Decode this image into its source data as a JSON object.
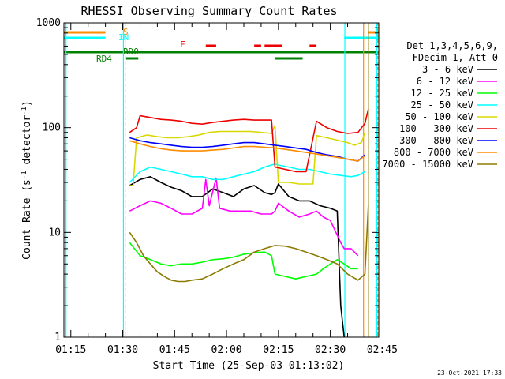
{
  "chart_data": {
    "type": "line",
    "title": "RHESSI Observing Summary Count Rates",
    "xlabel": "Start Time (25-Sep-03 01:13:02)",
    "ylabel_main": "Count Rate (s",
    "ylabel_sup": "-1",
    "ylabel_rest": " detector",
    "ylabel_sup2": "-1",
    "ylabel_end": ")",
    "xlim": [
      73,
      164
    ],
    "ylim": [
      1,
      1000
    ],
    "yscale": "log",
    "xticks": [
      {
        "t": 75,
        "label": "01:15"
      },
      {
        "t": 90,
        "label": "01:30"
      },
      {
        "t": 105,
        "label": "01:45"
      },
      {
        "t": 120,
        "label": "02:00"
      },
      {
        "t": 135,
        "label": "02:15"
      },
      {
        "t": 150,
        "label": "02:30"
      },
      {
        "t": 165,
        "label": "02:45"
      }
    ],
    "yticks": [
      {
        "v": 1,
        "label": "1"
      },
      {
        "v": 10,
        "label": "10"
      },
      {
        "v": 100,
        "label": "100"
      },
      {
        "v": 1000,
        "label": "1000"
      }
    ],
    "legend": {
      "header": [
        "Det 1,3,4,5,6,9,",
        "FDecim 1, Att 0"
      ],
      "entries": [
        {
          "label": "3 - 6 keV",
          "color": "#000000"
        },
        {
          "label": "6 - 12 keV",
          "color": "#ff00ff"
        },
        {
          "label": "12 - 25 keV",
          "color": "#00ff00"
        },
        {
          "label": "25 - 50 keV",
          "color": "#00ffff"
        },
        {
          "label": "50 - 100 keV",
          "color": "#d8d800"
        },
        {
          "label": "100 - 300 keV",
          "color": "#ee0000"
        },
        {
          "label": "300 - 800 keV",
          "color": "#0000ff"
        },
        {
          "label": "800 - 7000 keV",
          "color": "#ff8c00"
        },
        {
          "label": "7000 - 15000 keV",
          "color": "#8b7a00"
        }
      ]
    },
    "flags": [
      {
        "label": "S",
        "color": "#ff8c00",
        "segments": [
          [
            73,
            85
          ],
          [
            161,
            164
          ]
        ]
      },
      {
        "label": "IN",
        "color": "#00ffff",
        "segments": [
          [
            73,
            85
          ],
          [
            154,
            164
          ]
        ]
      },
      {
        "label": "F",
        "color": "#ee0000",
        "segments": [
          [
            114,
            117
          ],
          [
            128,
            130
          ],
          [
            131,
            136
          ],
          [
            144,
            146
          ]
        ]
      },
      {
        "label": "RD0",
        "color": "#008000",
        "segments": [
          [
            73,
            164
          ]
        ]
      },
      {
        "label": "RD4",
        "color": "#008000",
        "segments": [
          [
            91,
            94.5
          ],
          [
            134,
            142
          ]
        ]
      }
    ],
    "vlines": [
      {
        "t": 73.6,
        "color": "#00ffff",
        "style": "solid"
      },
      {
        "t": 90.7,
        "color": "#ff8c00",
        "style": "dashed"
      },
      {
        "t": 90.2,
        "color": "#00ffff",
        "style": "solid"
      },
      {
        "t": 154.2,
        "color": "#00ffff",
        "style": "solid"
      },
      {
        "t": 159.6,
        "color": "#ff8c00",
        "style": "solid"
      },
      {
        "t": 161.0,
        "color": "#8b7a00",
        "style": "solid"
      },
      {
        "t": 163.4,
        "color": "#00ffff",
        "style": "solid"
      },
      {
        "t": 163.7,
        "color": "#ff8c00",
        "style": "dashed"
      }
    ],
    "series": [
      {
        "name": "3 - 6 keV",
        "color": "#000000",
        "points": [
          [
            92,
            28
          ],
          [
            95,
            32
          ],
          [
            98,
            34
          ],
          [
            101,
            30
          ],
          [
            104,
            27
          ],
          [
            107,
            25
          ],
          [
            110,
            22
          ],
          [
            113,
            22
          ],
          [
            116,
            26
          ],
          [
            119,
            24
          ],
          [
            122,
            22
          ],
          [
            125,
            26
          ],
          [
            128,
            28
          ],
          [
            131,
            24
          ],
          [
            133,
            23
          ],
          [
            134,
            24
          ],
          [
            135,
            29
          ],
          [
            138,
            22
          ],
          [
            141,
            20
          ],
          [
            144,
            20
          ],
          [
            147,
            18
          ],
          [
            150,
            17
          ],
          [
            152,
            16
          ],
          [
            153,
            2
          ],
          [
            154,
            1
          ]
        ]
      },
      {
        "name": "6 - 12 keV",
        "color": "#ff00ff",
        "points": [
          [
            92,
            16
          ],
          [
            95,
            18
          ],
          [
            98,
            20
          ],
          [
            101,
            19
          ],
          [
            104,
            17
          ],
          [
            107,
            15
          ],
          [
            110,
            15
          ],
          [
            113,
            17
          ],
          [
            114,
            32
          ],
          [
            115,
            18
          ],
          [
            117,
            33
          ],
          [
            118,
            17
          ],
          [
            121,
            16
          ],
          [
            124,
            16
          ],
          [
            127,
            16
          ],
          [
            130,
            15
          ],
          [
            133,
            15
          ],
          [
            134,
            16
          ],
          [
            135,
            19
          ],
          [
            138,
            16
          ],
          [
            141,
            14
          ],
          [
            144,
            15
          ],
          [
            146,
            16
          ],
          [
            148,
            14
          ],
          [
            150,
            13
          ],
          [
            153,
            8
          ],
          [
            154,
            7
          ],
          [
            156,
            7
          ],
          [
            158,
            6
          ]
        ]
      },
      {
        "name": "12 - 25 keV",
        "color": "#00ff00",
        "points": [
          [
            92,
            8
          ],
          [
            95,
            6
          ],
          [
            98,
            5.5
          ],
          [
            101,
            5
          ],
          [
            104,
            4.8
          ],
          [
            107,
            5
          ],
          [
            110,
            5
          ],
          [
            113,
            5.2
          ],
          [
            116,
            5.5
          ],
          [
            119,
            5.6
          ],
          [
            122,
            5.8
          ],
          [
            125,
            6.2
          ],
          [
            128,
            6.4
          ],
          [
            131,
            6.5
          ],
          [
            133,
            6
          ],
          [
            134,
            4
          ],
          [
            137,
            3.8
          ],
          [
            140,
            3.6
          ],
          [
            143,
            3.8
          ],
          [
            146,
            4
          ],
          [
            148,
            4.5
          ],
          [
            150,
            5
          ],
          [
            152,
            5.5
          ],
          [
            154,
            5
          ],
          [
            156,
            4.5
          ],
          [
            158,
            4.5
          ]
        ]
      },
      {
        "name": "25 - 50 keV",
        "color": "#00ffff",
        "points": [
          [
            92,
            30
          ],
          [
            95,
            38
          ],
          [
            98,
            42
          ],
          [
            101,
            40
          ],
          [
            104,
            38
          ],
          [
            107,
            36
          ],
          [
            110,
            34
          ],
          [
            113,
            34
          ],
          [
            116,
            32
          ],
          [
            119,
            32
          ],
          [
            122,
            34
          ],
          [
            125,
            36
          ],
          [
            128,
            38
          ],
          [
            131,
            42
          ],
          [
            133,
            44
          ],
          [
            134,
            45
          ],
          [
            135,
            44
          ],
          [
            138,
            42
          ],
          [
            141,
            40
          ],
          [
            144,
            40
          ],
          [
            147,
            38
          ],
          [
            150,
            36
          ],
          [
            153,
            35
          ],
          [
            156,
            34
          ],
          [
            158,
            35
          ],
          [
            160,
            38
          ]
        ]
      },
      {
        "name": "50 - 100 keV",
        "color": "#d8d800",
        "points": [
          [
            92,
            28
          ],
          [
            93,
            28
          ],
          [
            94,
            80
          ],
          [
            97,
            85
          ],
          [
            100,
            82
          ],
          [
            103,
            80
          ],
          [
            106,
            80
          ],
          [
            109,
            82
          ],
          [
            112,
            85
          ],
          [
            115,
            90
          ],
          [
            118,
            92
          ],
          [
            121,
            92
          ],
          [
            124,
            92
          ],
          [
            127,
            92
          ],
          [
            130,
            90
          ],
          [
            133,
            88
          ],
          [
            134,
            105
          ],
          [
            135,
            30
          ],
          [
            138,
            30
          ],
          [
            141,
            29
          ],
          [
            144,
            29
          ],
          [
            145,
            29
          ],
          [
            146,
            84
          ],
          [
            149,
            80
          ],
          [
            152,
            76
          ],
          [
            155,
            72
          ],
          [
            157,
            68
          ],
          [
            159,
            72
          ],
          [
            160,
            90
          ]
        ]
      },
      {
        "name": "100 - 300 keV",
        "color": "#ee0000",
        "points": [
          [
            92,
            90
          ],
          [
            94,
            100
          ],
          [
            95,
            130
          ],
          [
            98,
            125
          ],
          [
            101,
            120
          ],
          [
            104,
            118
          ],
          [
            107,
            115
          ],
          [
            110,
            110
          ],
          [
            113,
            108
          ],
          [
            116,
            112
          ],
          [
            119,
            115
          ],
          [
            122,
            118
          ],
          [
            125,
            120
          ],
          [
            128,
            118
          ],
          [
            131,
            118
          ],
          [
            133,
            118
          ],
          [
            134,
            42
          ],
          [
            137,
            40
          ],
          [
            140,
            38
          ],
          [
            143,
            38
          ],
          [
            146,
            115
          ],
          [
            149,
            100
          ],
          [
            152,
            92
          ],
          [
            155,
            88
          ],
          [
            158,
            90
          ],
          [
            160,
            110
          ],
          [
            161,
            150
          ]
        ]
      },
      {
        "name": "300 - 800 keV",
        "color": "#0000ff",
        "points": [
          [
            92,
            80
          ],
          [
            95,
            75
          ],
          [
            98,
            72
          ],
          [
            101,
            70
          ],
          [
            104,
            68
          ],
          [
            107,
            66
          ],
          [
            110,
            65
          ],
          [
            113,
            65
          ],
          [
            116,
            66
          ],
          [
            119,
            68
          ],
          [
            122,
            70
          ],
          [
            125,
            72
          ],
          [
            128,
            72
          ],
          [
            131,
            70
          ],
          [
            134,
            68
          ],
          [
            137,
            66
          ],
          [
            140,
            64
          ],
          [
            143,
            62
          ],
          [
            146,
            58
          ],
          [
            149,
            55
          ],
          [
            152,
            53
          ],
          [
            155,
            50
          ],
          [
            158,
            48
          ],
          [
            160,
            55
          ]
        ]
      },
      {
        "name": "800 - 7000 keV",
        "color": "#ff8c00",
        "points": [
          [
            92,
            75
          ],
          [
            95,
            70
          ],
          [
            98,
            66
          ],
          [
            101,
            63
          ],
          [
            104,
            61
          ],
          [
            107,
            60
          ],
          [
            110,
            60
          ],
          [
            113,
            60
          ],
          [
            116,
            61
          ],
          [
            119,
            62
          ],
          [
            122,
            64
          ],
          [
            125,
            66
          ],
          [
            128,
            66
          ],
          [
            131,
            65
          ],
          [
            134,
            64
          ],
          [
            137,
            62
          ],
          [
            140,
            60
          ],
          [
            143,
            58
          ],
          [
            146,
            56
          ],
          [
            149,
            54
          ],
          [
            152,
            52
          ],
          [
            155,
            50
          ],
          [
            158,
            48
          ],
          [
            160,
            54
          ]
        ]
      },
      {
        "name": "7000 - 15000 keV",
        "color": "#8b7a00",
        "points": [
          [
            92,
            10
          ],
          [
            94,
            8
          ],
          [
            96,
            6
          ],
          [
            98,
            5
          ],
          [
            100,
            4.2
          ],
          [
            102,
            3.8
          ],
          [
            104,
            3.5
          ],
          [
            106,
            3.4
          ],
          [
            108,
            3.4
          ],
          [
            110,
            3.5
          ],
          [
            113,
            3.6
          ],
          [
            116,
            4
          ],
          [
            119,
            4.5
          ],
          [
            122,
            5
          ],
          [
            125,
            5.5
          ],
          [
            128,
            6.5
          ],
          [
            131,
            7
          ],
          [
            134,
            7.5
          ],
          [
            137,
            7.4
          ],
          [
            140,
            7
          ],
          [
            143,
            6.5
          ],
          [
            146,
            6
          ],
          [
            149,
            5.5
          ],
          [
            152,
            5
          ],
          [
            155,
            4
          ],
          [
            158,
            3.5
          ],
          [
            160,
            4
          ],
          [
            161,
            18
          ]
        ]
      }
    ],
    "footer_date": "23-Oct-2021 17:33"
  }
}
